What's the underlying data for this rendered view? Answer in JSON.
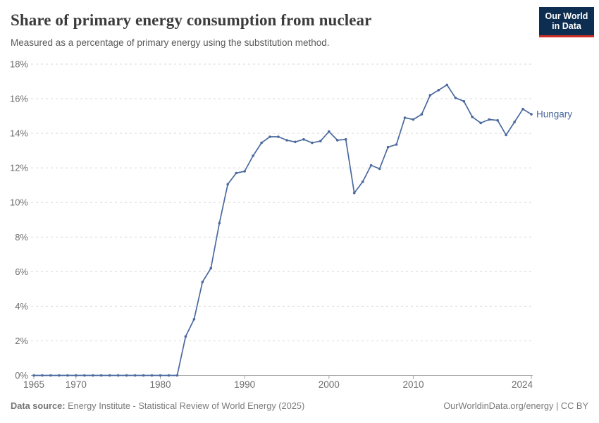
{
  "header": {
    "title": "Share of primary energy consumption from nuclear",
    "subtitle": "Measured as a percentage of primary energy using the substitution method.",
    "logo": {
      "line1": "Our World",
      "line2": "in Data"
    }
  },
  "chart_data": {
    "type": "line",
    "title": "Share of primary energy consumption from nuclear",
    "ylabel": "",
    "xlabel": "",
    "unit": "%",
    "grid": "horizontal-dashed",
    "legend_position": "end-of-line",
    "xlim": [
      1965,
      2024
    ],
    "ylim": [
      0,
      18
    ],
    "yticks": [
      0,
      2,
      4,
      6,
      8,
      10,
      12,
      14,
      16,
      18
    ],
    "xticks": [
      1965,
      1970,
      1980,
      1990,
      2000,
      2010,
      2024
    ],
    "series": [
      {
        "name": "Hungary",
        "x": [
          1965,
          1966,
          1967,
          1968,
          1969,
          1970,
          1971,
          1972,
          1973,
          1974,
          1975,
          1976,
          1977,
          1978,
          1979,
          1980,
          1981,
          1982,
          1983,
          1984,
          1985,
          1986,
          1987,
          1988,
          1989,
          1990,
          1991,
          1992,
          1993,
          1994,
          1995,
          1996,
          1997,
          1998,
          1999,
          2000,
          2001,
          2002,
          2003,
          2004,
          2005,
          2006,
          2007,
          2008,
          2009,
          2010,
          2011,
          2012,
          2013,
          2014,
          2015,
          2016,
          2017,
          2018,
          2019,
          2020,
          2021,
          2022,
          2023,
          2024
        ],
        "values": [
          0,
          0,
          0,
          0,
          0,
          0,
          0,
          0,
          0,
          0,
          0,
          0,
          0,
          0,
          0,
          0,
          0,
          0,
          2.25,
          3.25,
          5.4,
          6.2,
          8.8,
          11.05,
          11.7,
          11.8,
          12.7,
          13.45,
          13.8,
          13.8,
          13.6,
          13.5,
          13.65,
          13.45,
          13.55,
          14.1,
          13.6,
          13.65,
          10.55,
          11.2,
          12.15,
          11.95,
          13.2,
          13.35,
          14.9,
          14.8,
          15.1,
          16.2,
          16.5,
          16.8,
          16.05,
          15.85,
          14.95,
          14.6,
          14.8,
          14.75,
          13.9,
          14.65,
          15.4,
          15.1
        ]
      }
    ]
  },
  "footer": {
    "source_label": "Data source:",
    "source_text": " Energy Institute - Statistical Review of World Energy (2025)",
    "credit": "OurWorldinData.org/energy | CC BY"
  },
  "colors": {
    "line": "#4a699e",
    "grid": "#dadada",
    "axis": "#a5a5a5",
    "tick_text": "#6e6e6e",
    "logo_bg": "#0d2e51",
    "logo_red": "#cf2d24",
    "title_text": "#3b3b3b"
  }
}
